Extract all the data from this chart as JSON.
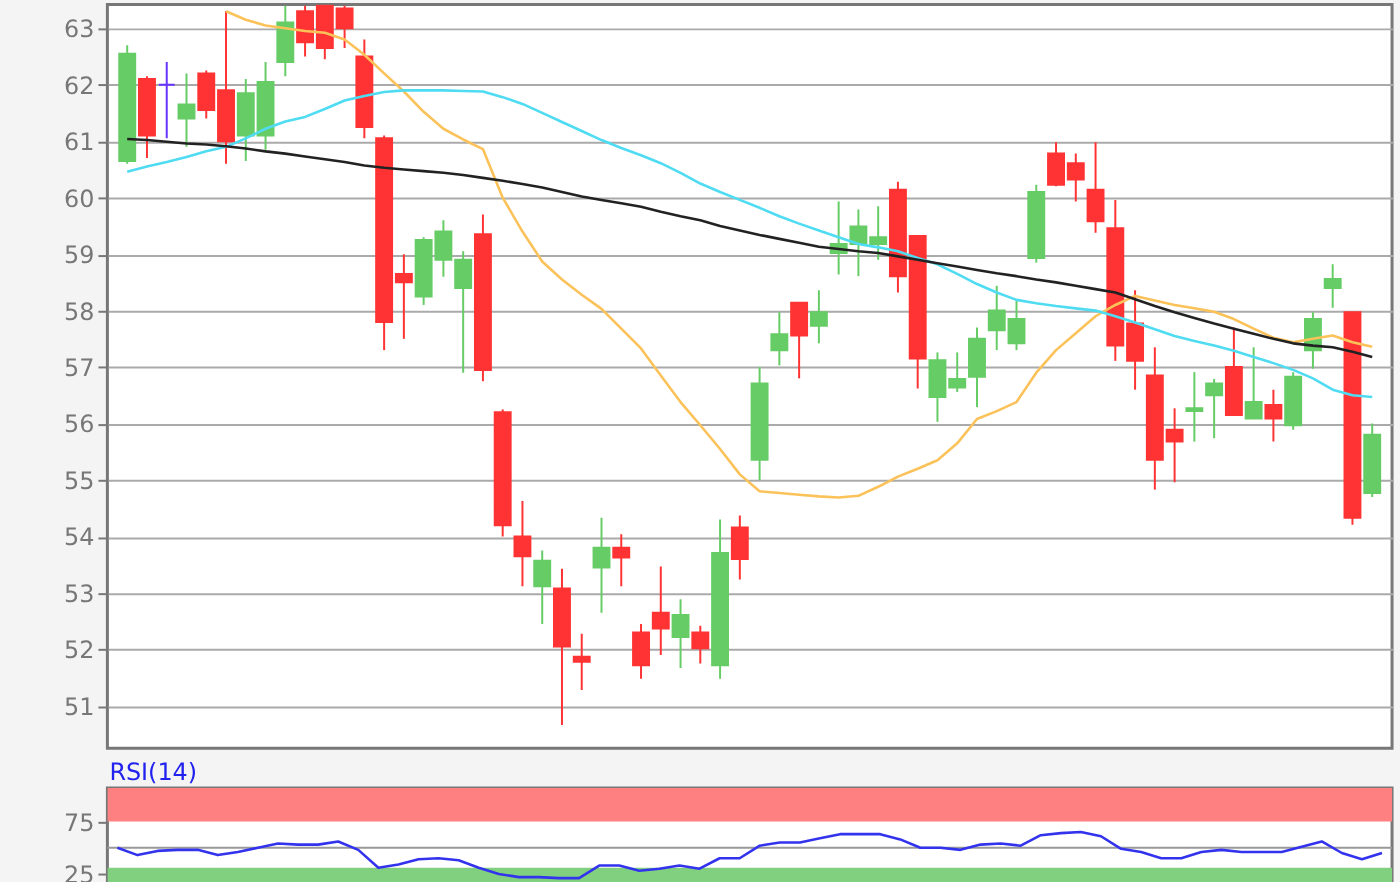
{
  "chart_data": [
    {
      "type": "candlestick",
      "categories": [
        null,
        null,
        null,
        null,
        null,
        null,
        null,
        null,
        null,
        null,
        null,
        null,
        null,
        null,
        null,
        null,
        null,
        null,
        null,
        null,
        null,
        null,
        null,
        null,
        null,
        null,
        null,
        null,
        null,
        null,
        null,
        null,
        null,
        null,
        null,
        null,
        null,
        null,
        null,
        null,
        null,
        null,
        null,
        null,
        null,
        null,
        null,
        null,
        null,
        null,
        null,
        null,
        null,
        null,
        null,
        null,
        null,
        null,
        null,
        null,
        null,
        null,
        null,
        null
      ],
      "ohlc": [
        [
          60.65,
          62.7,
          60.6,
          62.55
        ],
        [
          62.1,
          62.15,
          60.7,
          61.1
        ],
        [
          62.0,
          62.4,
          61.05,
          62.0
        ],
        [
          61.4,
          62.2,
          60.9,
          61.65
        ],
        [
          62.2,
          62.25,
          61.4,
          61.55
        ],
        [
          61.9,
          63.3,
          60.6,
          61.0
        ],
        [
          61.1,
          62.1,
          60.65,
          61.85
        ],
        [
          61.1,
          62.4,
          60.85,
          62.05
        ],
        [
          62.4,
          63.4,
          62.15,
          63.1
        ],
        [
          63.3,
          63.4,
          62.5,
          62.75
        ],
        [
          63.4,
          63.4,
          62.45,
          62.65
        ],
        [
          63.35,
          63.4,
          62.65,
          63.0
        ],
        [
          62.5,
          62.8,
          61.05,
          61.25
        ],
        [
          61.05,
          61.1,
          57.3,
          57.8
        ],
        [
          58.65,
          59.0,
          57.5,
          58.5
        ],
        [
          58.25,
          59.3,
          58.1,
          59.25
        ],
        [
          58.9,
          59.6,
          58.6,
          59.4
        ],
        [
          58.4,
          59.05,
          56.9,
          58.9
        ],
        [
          59.35,
          59.7,
          56.75,
          56.95
        ],
        [
          56.2,
          56.25,
          54.0,
          54.2
        ],
        [
          54.0,
          54.63,
          53.12,
          53.65
        ],
        [
          53.12,
          53.75,
          52.45,
          53.57
        ],
        [
          53.08,
          53.43,
          50.66,
          52.05
        ],
        [
          51.87,
          52.28,
          51.28,
          51.78
        ],
        [
          53.45,
          54.33,
          52.65,
          53.8
        ],
        [
          53.8,
          54.04,
          53.12,
          53.63
        ],
        [
          52.3,
          52.45,
          51.48,
          51.72
        ],
        [
          52.65,
          53.47,
          51.9,
          52.37
        ],
        [
          52.22,
          52.89,
          51.67,
          52.61
        ],
        [
          52.3,
          52.42,
          51.75,
          52.02
        ],
        [
          51.72,
          54.3,
          51.48,
          53.71
        ],
        [
          54.16,
          54.37,
          53.24,
          53.6
        ],
        [
          55.36,
          57.0,
          55.0,
          56.71
        ],
        [
          57.3,
          57.97,
          57.03,
          57.58
        ],
        [
          58.14,
          58.14,
          56.8,
          57.56
        ],
        [
          57.73,
          58.36,
          57.42,
          57.97
        ],
        [
          59.02,
          59.93,
          58.64,
          59.18
        ],
        [
          59.18,
          59.79,
          58.61,
          59.49
        ],
        [
          59.18,
          59.85,
          58.9,
          59.3
        ],
        [
          60.14,
          60.28,
          58.32,
          58.61
        ],
        [
          59.32,
          59.32,
          56.62,
          57.15
        ],
        [
          56.47,
          57.26,
          56.03,
          57.12
        ],
        [
          56.64,
          57.26,
          56.56,
          56.79
        ],
        [
          56.83,
          57.7,
          56.29,
          57.5
        ],
        [
          57.65,
          58.44,
          57.3,
          58.0
        ],
        [
          57.42,
          58.2,
          57.3,
          57.85
        ],
        [
          58.93,
          60.23,
          58.85,
          60.1
        ],
        [
          60.78,
          60.98,
          60.2,
          60.23
        ],
        [
          60.61,
          60.78,
          59.93,
          60.32
        ],
        [
          60.14,
          60.98,
          59.38,
          59.58
        ],
        [
          59.46,
          59.96,
          57.11,
          57.38
        ],
        [
          57.77,
          58.36,
          56.6,
          57.11
        ],
        [
          56.85,
          57.35,
          54.83,
          55.36
        ],
        [
          55.89,
          56.27,
          54.96,
          55.68
        ],
        [
          56.22,
          56.91,
          55.68,
          56.27
        ],
        [
          56.5,
          56.79,
          55.74,
          56.71
        ],
        [
          57.0,
          57.7,
          56.15,
          56.15
        ],
        [
          56.09,
          57.35,
          56.09,
          56.38
        ],
        [
          56.33,
          56.6,
          55.68,
          56.09
        ],
        [
          55.97,
          56.91,
          55.89,
          56.83
        ],
        [
          57.3,
          57.97,
          56.97,
          57.85
        ],
        [
          58.4,
          58.82,
          58.05,
          58.56
        ],
        [
          57.97,
          57.97,
          54.21,
          54.33
        ],
        [
          54.77,
          56.0,
          54.7,
          55.8
        ]
      ],
      "colors": [
        "#66cc66",
        "#ff3333",
        "#6633ff",
        "#66cc66",
        "#ff3333",
        "#ff3333",
        "#66cc66",
        "#66cc66",
        "#66cc66",
        "#ff3333",
        "#ff3333",
        "#ff3333",
        "#ff3333",
        "#ff3333",
        "#ff3333",
        "#66cc66",
        "#66cc66",
        "#66cc66",
        "#ff3333",
        "#ff3333",
        "#ff3333",
        "#66cc66",
        "#ff3333",
        "#ff3333",
        "#66cc66",
        "#ff3333",
        "#ff3333",
        "#ff3333",
        "#66cc66",
        "#ff3333",
        "#66cc66",
        "#ff3333",
        "#66cc66",
        "#66cc66",
        "#ff3333",
        "#66cc66",
        "#66cc66",
        "#66cc66",
        "#66cc66",
        "#ff3333",
        "#ff3333",
        "#66cc66",
        "#66cc66",
        "#66cc66",
        "#66cc66",
        "#66cc66",
        "#66cc66",
        "#ff3333",
        "#ff3333",
        "#ff3333",
        "#ff3333",
        "#ff3333",
        "#ff3333",
        "#ff3333",
        "#66cc66",
        "#66cc66",
        "#ff3333",
        "#66cc66",
        "#ff3333",
        "#66cc66",
        "#66cc66",
        "#66cc66",
        "#ff3333",
        "#66cc66"
      ],
      "series": [
        {
          "type": "line",
          "color": "#fbc25a",
          "values": [
            null,
            null,
            null,
            null,
            null,
            63.3,
            63.15,
            63.05,
            63.0,
            62.95,
            62.92,
            62.8,
            62.53,
            62.2,
            61.88,
            61.52,
            61.22,
            61.03,
            60.86,
            60.0,
            59.4,
            58.87,
            58.55,
            58.28,
            58.03,
            57.68,
            57.33,
            56.85,
            56.38,
            55.97,
            55.55,
            55.1,
            54.8,
            54.77,
            54.74,
            54.71,
            54.69,
            54.72,
            54.88,
            55.06,
            55.2,
            55.35,
            55.65,
            56.08,
            56.22,
            56.38,
            56.9,
            57.3,
            57.6,
            57.9,
            58.1,
            58.26,
            58.18,
            58.1,
            58.04,
            57.98,
            57.85,
            57.68,
            57.52,
            57.44,
            57.5,
            57.56,
            57.44,
            57.36
          ]
        },
        {
          "type": "line",
          "color": "#4fdcf2",
          "values": [
            60.46,
            60.55,
            60.63,
            60.72,
            60.82,
            60.9,
            61.05,
            61.22,
            61.35,
            61.43,
            61.57,
            61.72,
            61.8,
            61.87,
            61.9,
            61.9,
            61.9,
            61.89,
            61.88,
            61.78,
            61.66,
            61.5,
            61.34,
            61.18,
            61.02,
            60.88,
            60.75,
            60.61,
            60.44,
            60.25,
            60.1,
            59.96,
            59.82,
            59.67,
            59.54,
            59.42,
            59.3,
            59.18,
            59.12,
            59.05,
            58.93,
            58.82,
            58.65,
            58.47,
            58.32,
            58.19,
            58.13,
            58.08,
            58.04,
            58.0,
            57.9,
            57.79,
            57.67,
            57.55,
            57.46,
            57.38,
            57.29,
            57.18,
            57.07,
            56.95,
            56.8,
            56.6,
            56.5,
            56.47
          ]
        },
        {
          "type": "line",
          "color": "#222222",
          "values": [
            61.04,
            61.02,
            60.99,
            60.96,
            60.94,
            60.91,
            60.87,
            60.82,
            60.78,
            60.73,
            60.68,
            60.63,
            60.57,
            60.53,
            60.5,
            60.47,
            60.44,
            60.4,
            60.35,
            60.3,
            60.24,
            60.18,
            60.1,
            60.02,
            59.96,
            59.9,
            59.84,
            59.75,
            59.67,
            59.6,
            59.5,
            59.42,
            59.34,
            59.27,
            59.2,
            59.13,
            59.09,
            59.05,
            59.02,
            58.96,
            58.9,
            58.84,
            58.78,
            58.72,
            58.66,
            58.61,
            58.55,
            58.5,
            58.44,
            58.38,
            58.32,
            58.2,
            58.08,
            57.97,
            57.87,
            57.77,
            57.68,
            57.59,
            57.5,
            57.42,
            57.38,
            57.35,
            57.27,
            57.18
          ]
        }
      ],
      "ylim": [
        50.25,
        63.42
      ],
      "yticks": [
        51,
        52,
        53,
        54,
        55,
        56,
        57,
        58,
        59,
        60,
        61,
        62,
        63
      ],
      "grid": "y",
      "tick_labels": "y"
    },
    {
      "type": "line",
      "title": "RSI(14)",
      "categories": [
        null,
        null,
        null,
        null,
        null,
        null,
        null,
        null,
        null,
        null,
        null,
        null,
        null,
        null,
        null,
        null,
        null,
        null,
        null,
        null,
        null,
        null,
        null,
        null,
        null,
        null,
        null,
        null,
        null,
        null,
        null,
        null,
        null,
        null,
        null,
        null,
        null,
        null,
        null,
        null,
        null,
        null,
        null,
        null,
        null,
        null,
        null,
        null,
        null,
        null,
        null,
        null,
        null,
        null,
        null,
        null,
        null,
        null,
        null,
        null,
        null,
        null,
        null,
        null
      ],
      "series": [
        {
          "color": "#3333ee",
          "values": [
            50,
            43,
            47,
            48,
            48,
            43,
            46,
            50,
            54,
            53,
            53,
            56,
            48,
            31,
            34,
            39,
            40,
            38,
            31,
            25,
            22,
            22,
            21,
            21,
            33,
            33,
            28,
            30,
            33,
            30,
            40,
            40,
            52,
            55,
            55,
            59,
            63,
            63,
            63,
            58,
            50,
            50,
            48,
            53,
            54,
            52,
            62,
            64,
            65,
            61,
            49,
            46,
            40,
            40,
            46,
            48,
            46,
            46,
            46,
            51,
            56,
            45,
            39,
            45
          ]
        }
      ],
      "bands": [
        {
          "axis": "y",
          "from": 75,
          "to": 107,
          "color": "#ff8080"
        },
        {
          "axis": "y",
          "from": 14,
          "to": 31,
          "color": "#80d080"
        }
      ],
      "ref_lines": [
        {
          "axis": "y",
          "value": 50,
          "color": "#999999"
        }
      ],
      "ylim": [
        14,
        107
      ],
      "yticks": [
        25,
        75
      ],
      "grid": false,
      "tick_labels": "y"
    }
  ]
}
